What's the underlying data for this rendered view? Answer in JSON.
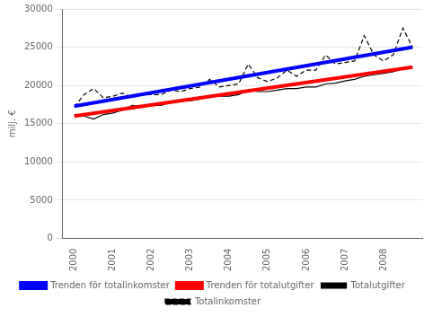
{
  "chart_data": {
    "type": "line",
    "y_label": "milj. €",
    "xlim": [
      1999.7,
      2009.0
    ],
    "xticks": [
      2000,
      2001,
      2002,
      2003,
      2004,
      2005,
      2006,
      2007,
      2008
    ],
    "ylim": [
      0,
      30000
    ],
    "yticks": [
      0,
      5000,
      10000,
      15000,
      20000,
      25000,
      30000
    ],
    "grid": "y",
    "legend": "bottom",
    "series": [
      {
        "name": "Totalutgifter",
        "color": "#000000",
        "line_style": "solid",
        "x": [
          2000.0,
          2000.25,
          2000.5,
          2000.75,
          2001.0,
          2001.25,
          2001.5,
          2001.75,
          2002.0,
          2002.25,
          2002.5,
          2002.75,
          2003.0,
          2003.25,
          2003.5,
          2003.75,
          2004.0,
          2004.25,
          2004.5,
          2004.75,
          2005.0,
          2005.25,
          2005.5,
          2005.75,
          2006.0,
          2006.25,
          2006.5,
          2006.75,
          2007.0,
          2007.25,
          2007.5,
          2007.75,
          2008.0,
          2008.25,
          2008.5,
          2008.75
        ],
        "values": [
          16200,
          16000,
          15600,
          16200,
          16400,
          16800,
          17400,
          17200,
          17400,
          17400,
          17800,
          18000,
          18000,
          18200,
          18600,
          18600,
          18600,
          18800,
          19400,
          19200,
          19200,
          19400,
          19600,
          19600,
          19800,
          19800,
          20200,
          20300,
          20600,
          20800,
          21200,
          21400,
          21600,
          21800,
          22200,
          22300
        ]
      },
      {
        "name": "Totalinkomster",
        "color": "#000000",
        "line_style": "dashed",
        "x": [
          2000.0,
          2000.25,
          2000.5,
          2000.75,
          2001.0,
          2001.25,
          2001.5,
          2001.75,
          2002.0,
          2002.25,
          2002.5,
          2002.75,
          2003.0,
          2003.25,
          2003.5,
          2003.75,
          2004.0,
          2004.25,
          2004.5,
          2004.75,
          2005.0,
          2005.25,
          2005.5,
          2005.75,
          2006.0,
          2006.25,
          2006.5,
          2006.75,
          2007.0,
          2007.25,
          2007.5,
          2007.75,
          2008.0,
          2008.25,
          2008.5,
          2008.75
        ],
        "values": [
          17200,
          18800,
          19600,
          18400,
          18600,
          19000,
          18400,
          18800,
          18800,
          18800,
          19400,
          19200,
          19600,
          19800,
          20800,
          19800,
          20000,
          20200,
          22800,
          21000,
          20500,
          21000,
          22000,
          21200,
          22000,
          22000,
          24000,
          22800,
          23000,
          23200,
          26500,
          24000,
          23200,
          24000,
          27500,
          25000
        ]
      },
      {
        "name": "Trenden för totalinkomster",
        "color": "#0000FF",
        "line_style": "solid",
        "x": [
          2000.0,
          2008.75
        ],
        "values": [
          17300,
          25000
        ]
      },
      {
        "name": "Trenden för totalutgifter",
        "color": "#FF0000",
        "line_style": "solid",
        "x": [
          2000.0,
          2008.75
        ],
        "values": [
          16000,
          22400
        ]
      }
    ]
  }
}
